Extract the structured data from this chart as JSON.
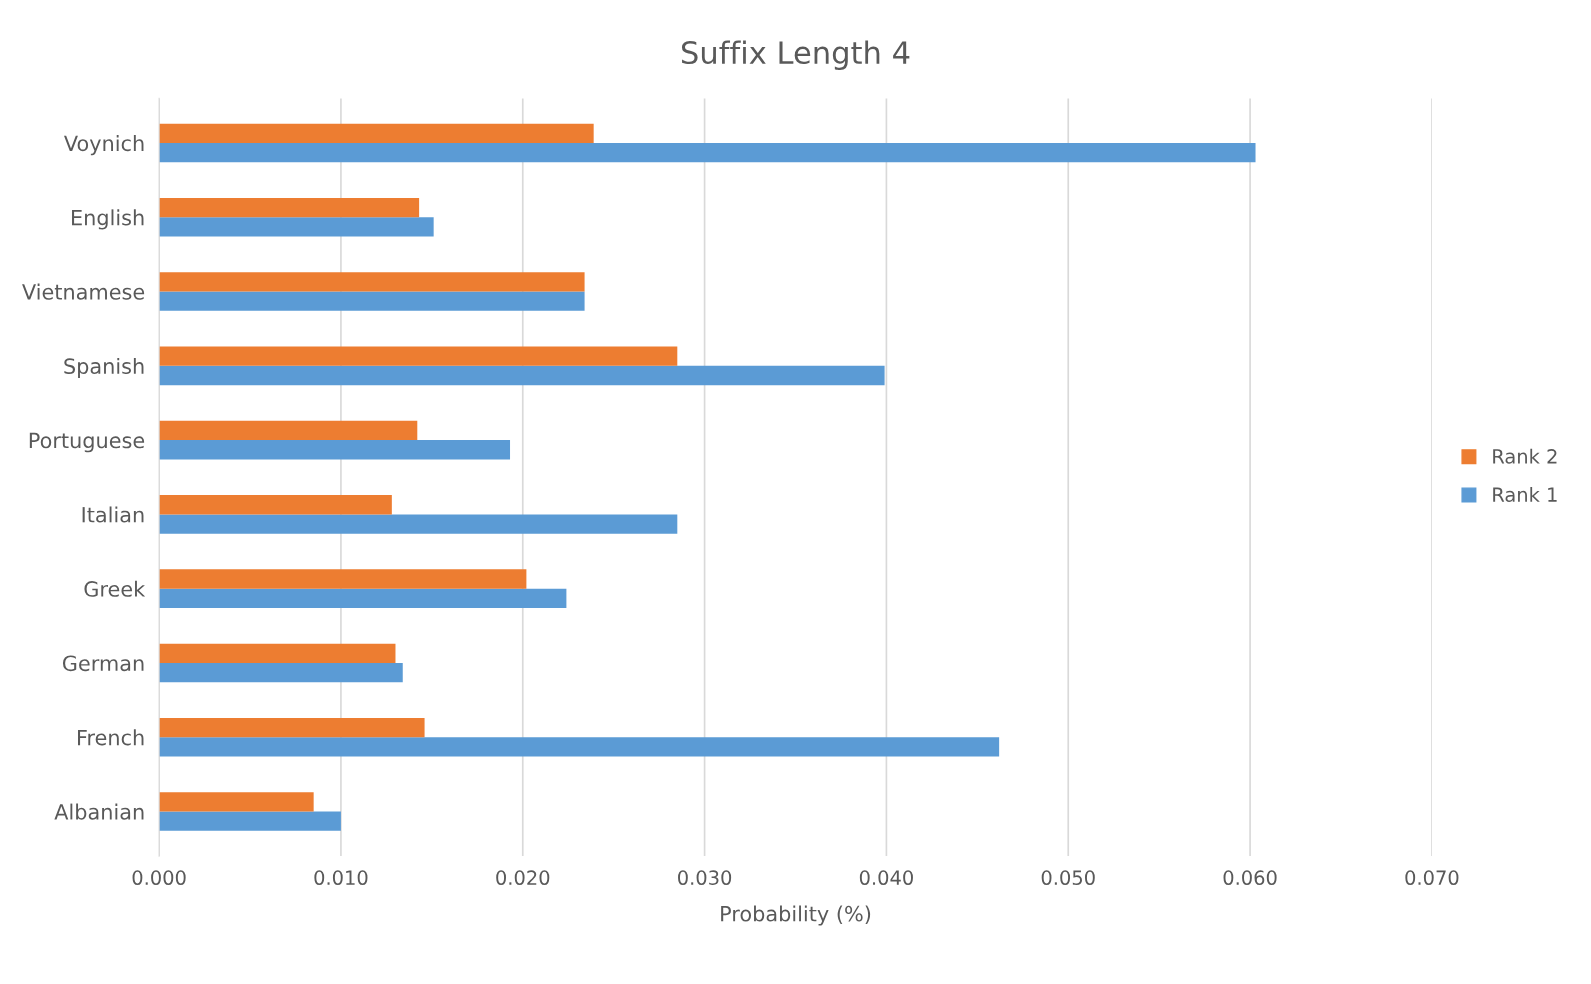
{
  "chart_data": {
    "type": "bar",
    "orientation": "horizontal",
    "title": "Suffix Length 4",
    "xlabel": "Probability (%)",
    "categories": [
      "Voynich",
      "English",
      "Vietnamese",
      "Spanish",
      "Portuguese",
      "Italian",
      "Greek",
      "German",
      "French",
      "Albanian"
    ],
    "series": [
      {
        "name": "Rank 1",
        "color": "#5b9bd5",
        "values": [
          0.0603,
          0.0151,
          0.0234,
          0.0399,
          0.0193,
          0.0285,
          0.0224,
          0.0134,
          0.0462,
          0.01
        ]
      },
      {
        "name": "Rank 2",
        "color": "#ed7d31",
        "values": [
          0.0239,
          0.0143,
          0.0234,
          0.0285,
          0.0142,
          0.0128,
          0.0202,
          0.013,
          0.0146,
          0.0085
        ]
      }
    ],
    "xlim": [
      0,
      0.07
    ],
    "xticks": [
      {
        "value": 0,
        "label": "0.000"
      },
      {
        "value": 0.01,
        "label": "0.010"
      },
      {
        "value": 0.02,
        "label": "0.020"
      },
      {
        "value": 0.03,
        "label": "0.030"
      },
      {
        "value": 0.04,
        "label": "0.040"
      },
      {
        "value": 0.05,
        "label": "0.050"
      },
      {
        "value": 0.06,
        "label": "0.060"
      },
      {
        "value": 0.07,
        "label": "0.070"
      }
    ],
    "grid": "x",
    "legend": "right"
  }
}
